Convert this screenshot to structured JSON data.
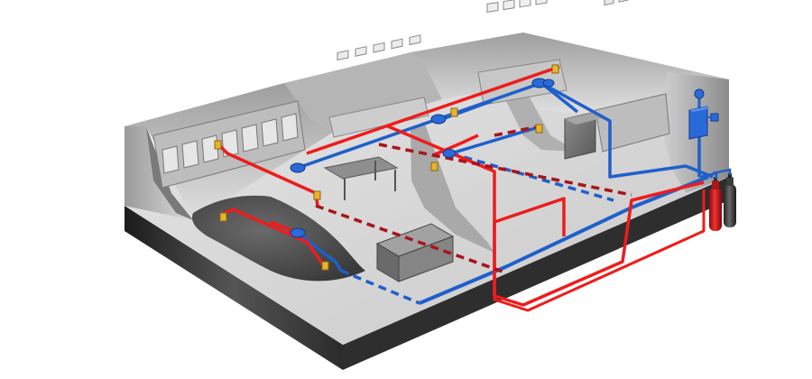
{
  "diagram": {
    "kind": "isometric building cutaway with fire suppression piping",
    "colors": {
      "background": "#ffffff",
      "supply_pipe": "#ee1c1c",
      "detection_pipe": "#1f5fcc",
      "floor": "#d9d9d9",
      "wall_light": "#cfcfcf",
      "wall_dark": "#3a3a3a",
      "nozzle": "#e8b52a",
      "cylinder_red": "#d21919",
      "cylinder_dark": "#4a4a4a"
    },
    "icons": [
      "fire-extinguishing-cylinder",
      "control-panel",
      "discharge-nozzle",
      "heat-detector"
    ]
  }
}
